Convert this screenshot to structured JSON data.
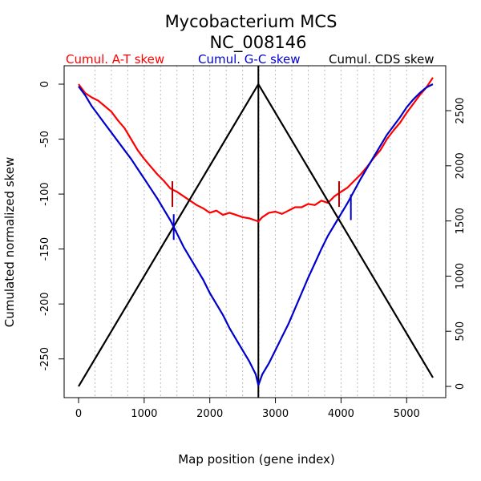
{
  "chart_data": {
    "type": "line",
    "title": "Mycobacterium MCS",
    "subtitle": "NC_008146",
    "xlabel": "Map position (gene index)",
    "ylabel": "Cumulated normalized skew",
    "xlim": [
      0,
      5400
    ],
    "ylim_left": [
      -275,
      0
    ],
    "ylim_right": [
      0,
      2740
    ],
    "x_ticks": [
      "0",
      "1000",
      "2000",
      "3000",
      "4000",
      "5000"
    ],
    "y_ticks_left": [
      "0",
      "-50",
      "-100",
      "-150",
      "-200",
      "-250"
    ],
    "y_ticks_right": [
      "0",
      "500",
      "1000",
      "1500",
      "2000",
      "2500"
    ],
    "grid": "vertical dotted every 250",
    "legend": [
      "Cumul. A-T skew",
      "Cumul. G-C skew",
      "Cumul. CDS skew"
    ],
    "series": [
      {
        "name": "Cumul. A-T skew",
        "axis": "left",
        "color": "#ff0000",
        "x": [
          0,
          100,
          200,
          300,
          400,
          500,
          600,
          700,
          800,
          900,
          1000,
          1100,
          1200,
          1300,
          1400,
          1500,
          1600,
          1700,
          1800,
          1900,
          2000,
          2100,
          2200,
          2300,
          2400,
          2500,
          2600,
          2700,
          2740,
          2800,
          2900,
          3000,
          3100,
          3200,
          3300,
          3400,
          3500,
          3600,
          3700,
          3800,
          3900,
          4000,
          4100,
          4200,
          4300,
          4400,
          4500,
          4600,
          4700,
          4800,
          4900,
          5000,
          5100,
          5200,
          5300,
          5400
        ],
        "y": [
          0,
          -8,
          -12,
          -15,
          -20,
          -25,
          -33,
          -40,
          -50,
          -60,
          -68,
          -75,
          -82,
          -88,
          -95,
          -98,
          -102,
          -106,
          -110,
          -113,
          -117,
          -115,
          -119,
          -117,
          -119,
          -121,
          -122,
          -124,
          -125,
          -121,
          -117,
          -116,
          -118,
          -115,
          -112,
          -112,
          -109,
          -110,
          -106,
          -108,
          -102,
          -98,
          -94,
          -88,
          -82,
          -75,
          -67,
          -60,
          -50,
          -42,
          -35,
          -26,
          -18,
          -10,
          -3,
          6
        ]
      },
      {
        "name": "Cumul. G-C skew",
        "axis": "left",
        "color": "#0000cc",
        "x": [
          0,
          100,
          200,
          300,
          400,
          500,
          600,
          700,
          800,
          900,
          1000,
          1100,
          1200,
          1300,
          1400,
          1500,
          1600,
          1700,
          1800,
          1900,
          2000,
          2100,
          2200,
          2300,
          2400,
          2500,
          2600,
          2700,
          2740,
          2800,
          2900,
          3000,
          3100,
          3200,
          3300,
          3400,
          3500,
          3600,
          3700,
          3800,
          3900,
          4000,
          4100,
          4200,
          4300,
          4400,
          4500,
          4600,
          4700,
          4800,
          4900,
          5000,
          5100,
          5200,
          5300,
          5400
        ],
        "y": [
          -2,
          -10,
          -20,
          -28,
          -36,
          -44,
          -52,
          -60,
          -68,
          -77,
          -86,
          -95,
          -104,
          -114,
          -124,
          -136,
          -148,
          -158,
          -168,
          -178,
          -190,
          -200,
          -210,
          -222,
          -232,
          -242,
          -252,
          -264,
          -274,
          -264,
          -254,
          -242,
          -230,
          -218,
          -204,
          -190,
          -176,
          -163,
          -150,
          -138,
          -128,
          -118,
          -108,
          -97,
          -86,
          -76,
          -66,
          -56,
          -46,
          -38,
          -30,
          -21,
          -14,
          -8,
          -3,
          0
        ]
      },
      {
        "name": "Cumul. CDS skew",
        "axis": "right",
        "color": "#000000",
        "x": [
          0,
          2740,
          5400
        ],
        "y": [
          0,
          2740,
          80
        ]
      }
    ],
    "markers": [
      {
        "series": "Cumul. A-T skew",
        "x": 1430,
        "y": -100,
        "color": "#aa0000"
      },
      {
        "series": "Cumul. A-T skew",
        "x": 3970,
        "y": -100,
        "color": "#aa0000"
      },
      {
        "series": "Cumul. G-C skew",
        "x": 1450,
        "y": -130,
        "color": "#0000cc"
      },
      {
        "series": "Cumul. G-C skew",
        "x": 4150,
        "y": -112,
        "color": "#0000cc"
      }
    ],
    "vline_x": 2740
  }
}
